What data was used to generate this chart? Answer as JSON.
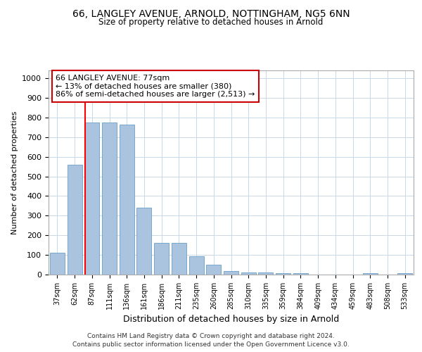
{
  "title_line1": "66, LANGLEY AVENUE, ARNOLD, NOTTINGHAM, NG5 6NN",
  "title_line2": "Size of property relative to detached houses in Arnold",
  "xlabel": "Distribution of detached houses by size in Arnold",
  "ylabel": "Number of detached properties",
  "categories": [
    "37sqm",
    "62sqm",
    "87sqm",
    "111sqm",
    "136sqm",
    "161sqm",
    "186sqm",
    "211sqm",
    "235sqm",
    "260sqm",
    "285sqm",
    "310sqm",
    "335sqm",
    "359sqm",
    "384sqm",
    "409sqm",
    "434sqm",
    "459sqm",
    "483sqm",
    "508sqm",
    "533sqm"
  ],
  "values": [
    110,
    558,
    775,
    775,
    765,
    340,
    160,
    160,
    95,
    50,
    18,
    12,
    10,
    8,
    8,
    0,
    0,
    0,
    8,
    0,
    8
  ],
  "bar_color": "#aac4e0",
  "bar_edge_color": "#6a9fc8",
  "red_line_x": 1.62,
  "annotation_text": "66 LANGLEY AVENUE: 77sqm\n← 13% of detached houses are smaller (380)\n86% of semi-detached houses are larger (2,513) →",
  "annotation_box_color": "#ffffff",
  "annotation_box_edge": "#cc0000",
  "ylim": [
    0,
    1040
  ],
  "yticks": [
    0,
    100,
    200,
    300,
    400,
    500,
    600,
    700,
    800,
    900,
    1000
  ],
  "footer_line1": "Contains HM Land Registry data © Crown copyright and database right 2024.",
  "footer_line2": "Contains public sector information licensed under the Open Government Licence v3.0.",
  "background_color": "#ffffff",
  "grid_color": "#c8d8e8"
}
